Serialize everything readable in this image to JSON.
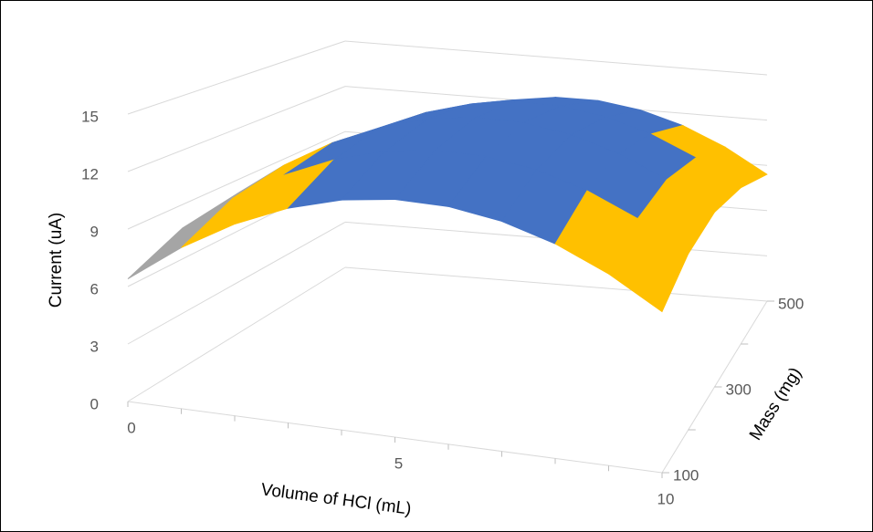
{
  "chart_data": {
    "type": "surface",
    "xlabel": "Volume of HCl (mL)",
    "ylabel": "Mass (mg)",
    "zlabel": "Current  (uA)",
    "categories": [
      0,
      null,
      null,
      null,
      null,
      5,
      null,
      null,
      null,
      null,
      10
    ],
    "depth_categories": [
      100,
      null,
      300,
      null,
      500
    ],
    "series": [
      {
        "values": [
          6.4,
          8.4,
          10.0,
          11.2,
          12.0,
          12.4,
          12.4,
          12.0,
          11.2,
          10.0,
          8.4
        ]
      },
      {
        "values": [
          7.7,
          9.7,
          11.3,
          12.5,
          13.3,
          13.7,
          13.7,
          13.3,
          12.5,
          11.3,
          9.7
        ]
      },
      {
        "values": [
          8.2,
          10.2,
          11.8,
          13.0,
          13.8,
          14.2,
          14.2,
          13.8,
          13.0,
          11.8,
          10.2
        ]
      },
      {
        "values": [
          7.7,
          9.7,
          11.3,
          12.5,
          13.3,
          13.7,
          13.7,
          13.3,
          12.5,
          11.3,
          9.7
        ]
      },
      {
        "values": [
          6.4,
          8.4,
          10.0,
          11.2,
          12.0,
          12.4,
          12.4,
          12.0,
          11.2,
          10.0,
          8.4
        ]
      }
    ],
    "zlim": [
      0,
      15
    ],
    "zticks": [
      0,
      3,
      6,
      9,
      12,
      15
    ],
    "band_colors": [
      "#4472c4",
      "#ed7d31",
      "#a5a5a5",
      "#ffc000",
      "#4472c4"
    ],
    "grid": true
  }
}
